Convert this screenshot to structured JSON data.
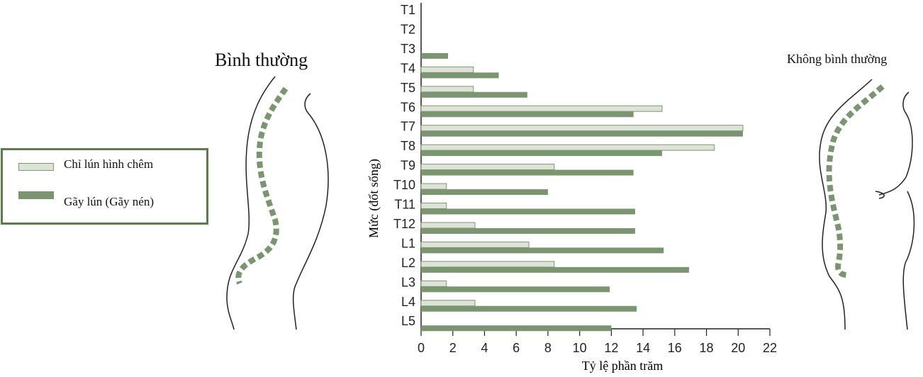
{
  "titles": {
    "normal": "Bình thường",
    "abnormal": "Không bình thường"
  },
  "colors": {
    "wedge": "#dde3d6",
    "wedge_border": "#7f9870",
    "compression": "#7b9570",
    "legend_border": "#5e7b4f",
    "spine": "#7b9570"
  },
  "chart_data": {
    "type": "bar",
    "orientation": "horizontal",
    "xlabel": "Tỷ lệ phần trăm",
    "ylabel": "Mức (đốt sống)",
    "xlim": [
      0,
      22
    ],
    "xticks": [
      0,
      2,
      4,
      6,
      8,
      10,
      12,
      14,
      16,
      18,
      20,
      22
    ],
    "categories": [
      "T1",
      "T2",
      "T3",
      "T4",
      "T5",
      "T6",
      "T7",
      "T8",
      "T9",
      "T10",
      "T11",
      "T12",
      "L1",
      "L2",
      "L3",
      "L4",
      "L5"
    ],
    "series": [
      {
        "name": "Chỉ lún hình chêm",
        "values": [
          0,
          0,
          0,
          3.3,
          3.3,
          15.2,
          20.3,
          18.5,
          8.4,
          1.6,
          1.6,
          3.4,
          6.8,
          8.4,
          1.6,
          3.4,
          0
        ]
      },
      {
        "name": "Gãy lún (Gãy nén)",
        "values": [
          0,
          0,
          1.7,
          4.9,
          6.7,
          13.4,
          20.3,
          15.2,
          13.4,
          8.0,
          13.5,
          13.5,
          15.3,
          16.9,
          11.9,
          13.6,
          12.0
        ]
      }
    ],
    "legend_position": "left",
    "grid": false
  }
}
